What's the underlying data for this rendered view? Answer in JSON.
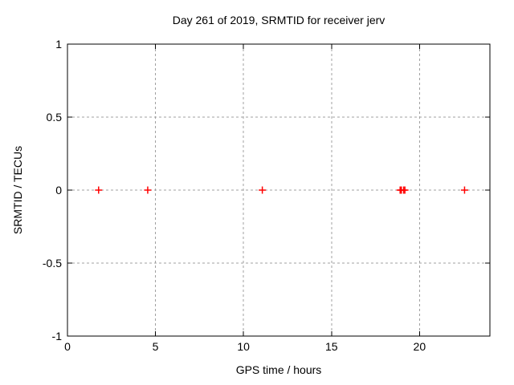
{
  "chart_data": {
    "type": "scatter",
    "title": "Day 261 of 2019, SRMTID for receiver jerv",
    "xlabel": "GPS time / hours",
    "ylabel": "SRMTID / TECUs",
    "xlim": [
      0,
      24
    ],
    "ylim": [
      -1,
      1
    ],
    "xticks": {
      "values": [
        0,
        5,
        10,
        15,
        20
      ],
      "labels": [
        "0",
        "5",
        "10",
        "15",
        "20"
      ]
    },
    "yticks": {
      "values": [
        -1,
        -0.5,
        0,
        0.5,
        1
      ],
      "labels": [
        "-1",
        "-0.5",
        "0",
        "0.5",
        "1"
      ]
    },
    "grid": true,
    "legend": "none",
    "series": [
      {
        "name": "SRMTID",
        "marker": "plus",
        "color": "#ff0000",
        "points": [
          {
            "x": 1.77,
            "y": 0
          },
          {
            "x": 4.56,
            "y": 0
          },
          {
            "x": 11.07,
            "y": 0
          },
          {
            "x": 18.9,
            "y": 0
          },
          {
            "x": 18.97,
            "y": 0
          },
          {
            "x": 19.1,
            "y": 0
          },
          {
            "x": 19.17,
            "y": 0
          },
          {
            "x": 22.56,
            "y": 0
          }
        ]
      }
    ],
    "colors": {
      "background": "#ffffff",
      "axis": "#000000",
      "grid": "#a0a0a0",
      "text": "#000000",
      "marker": "#ff0000"
    }
  }
}
